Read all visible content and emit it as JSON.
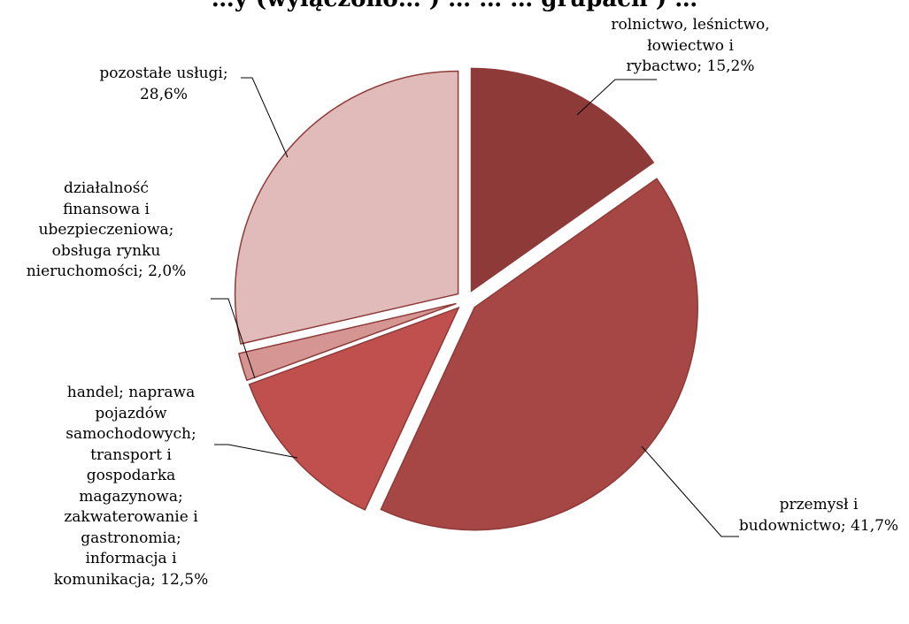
{
  "chart_data": {
    "type": "pie",
    "title": "…y (wyłączono… ) … … … grupach ) …",
    "slices": [
      {
        "label": "rolnictwo, leśnictwo,\nłowiectwo i\nrybactwo; 15,2%",
        "value": 15.2,
        "color": "#8e3a38"
      },
      {
        "label": "przemysł i\nbudownictwo; 41,7%",
        "value": 41.7,
        "color": "#a64745"
      },
      {
        "label": "handel; naprawa\npojazdów\nsamochodowych;\ntransport i\ngospodarka\nmagazynowa;\nzakwaterowanie i\ngastronomia;\ninformacja i\nkomunikacja; 12,5%",
        "value": 12.5,
        "color": "#c0504d"
      },
      {
        "label": "działalność\nfinansowa i\nubezpieczeniowa;\nobsługa rynku\nnieruchomości; 2,0%",
        "value": 2.0,
        "color": "#d49593"
      },
      {
        "label": "pozostałe usługi;\n28,6%",
        "value": 28.6,
        "color": "#e1bbba"
      }
    ],
    "stroke_color": "#8e3a38",
    "legend": "none",
    "labels": "outside-with-leader-lines"
  }
}
